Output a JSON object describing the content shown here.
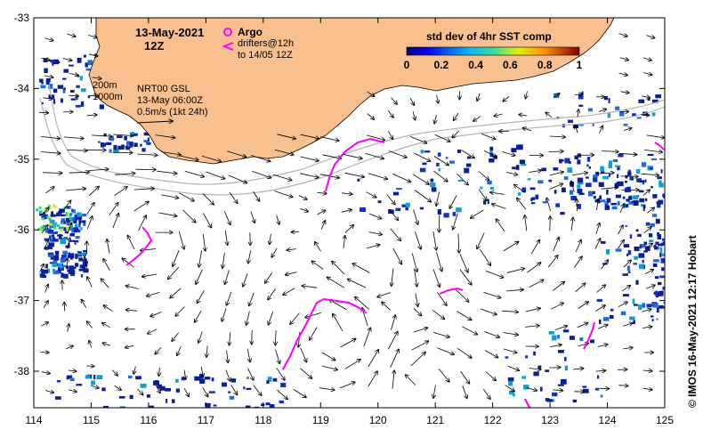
{
  "title": {
    "date": "13-May-2021",
    "time": "12Z"
  },
  "legend": {
    "argo_label": "Argo",
    "drifters_line1": "drifters@12h",
    "drifters_line2": "to 14/05 12Z"
  },
  "annotation": {
    "isobath_200": "200m",
    "isobath_1000": "1000m",
    "product": "NRT00 GSL",
    "analysis_time": "13-May 06:00Z",
    "scale": "0.5m/s (1kt 24h)"
  },
  "colorbar": {
    "title": "std dev of 4hr SST comp",
    "ticks": [
      "0",
      "0.2",
      "0.4",
      "0.6",
      "0.8",
      "1"
    ]
  },
  "axes": {
    "lon_ticks": [
      "114",
      "115",
      "116",
      "117",
      "118",
      "119",
      "120",
      "121",
      "122",
      "123",
      "124",
      "125"
    ],
    "lat_ticks": [
      "-33",
      "-34",
      "-35",
      "-36",
      "-37",
      "-38"
    ]
  },
  "credit": "©  IMOS 16-May-2021 12:17 Hobart",
  "colors": {
    "land": "#f8c08e",
    "drifter": "#ff00ff",
    "isobath": "#b4b4b4",
    "sst_low": "#0a1e9a"
  }
}
